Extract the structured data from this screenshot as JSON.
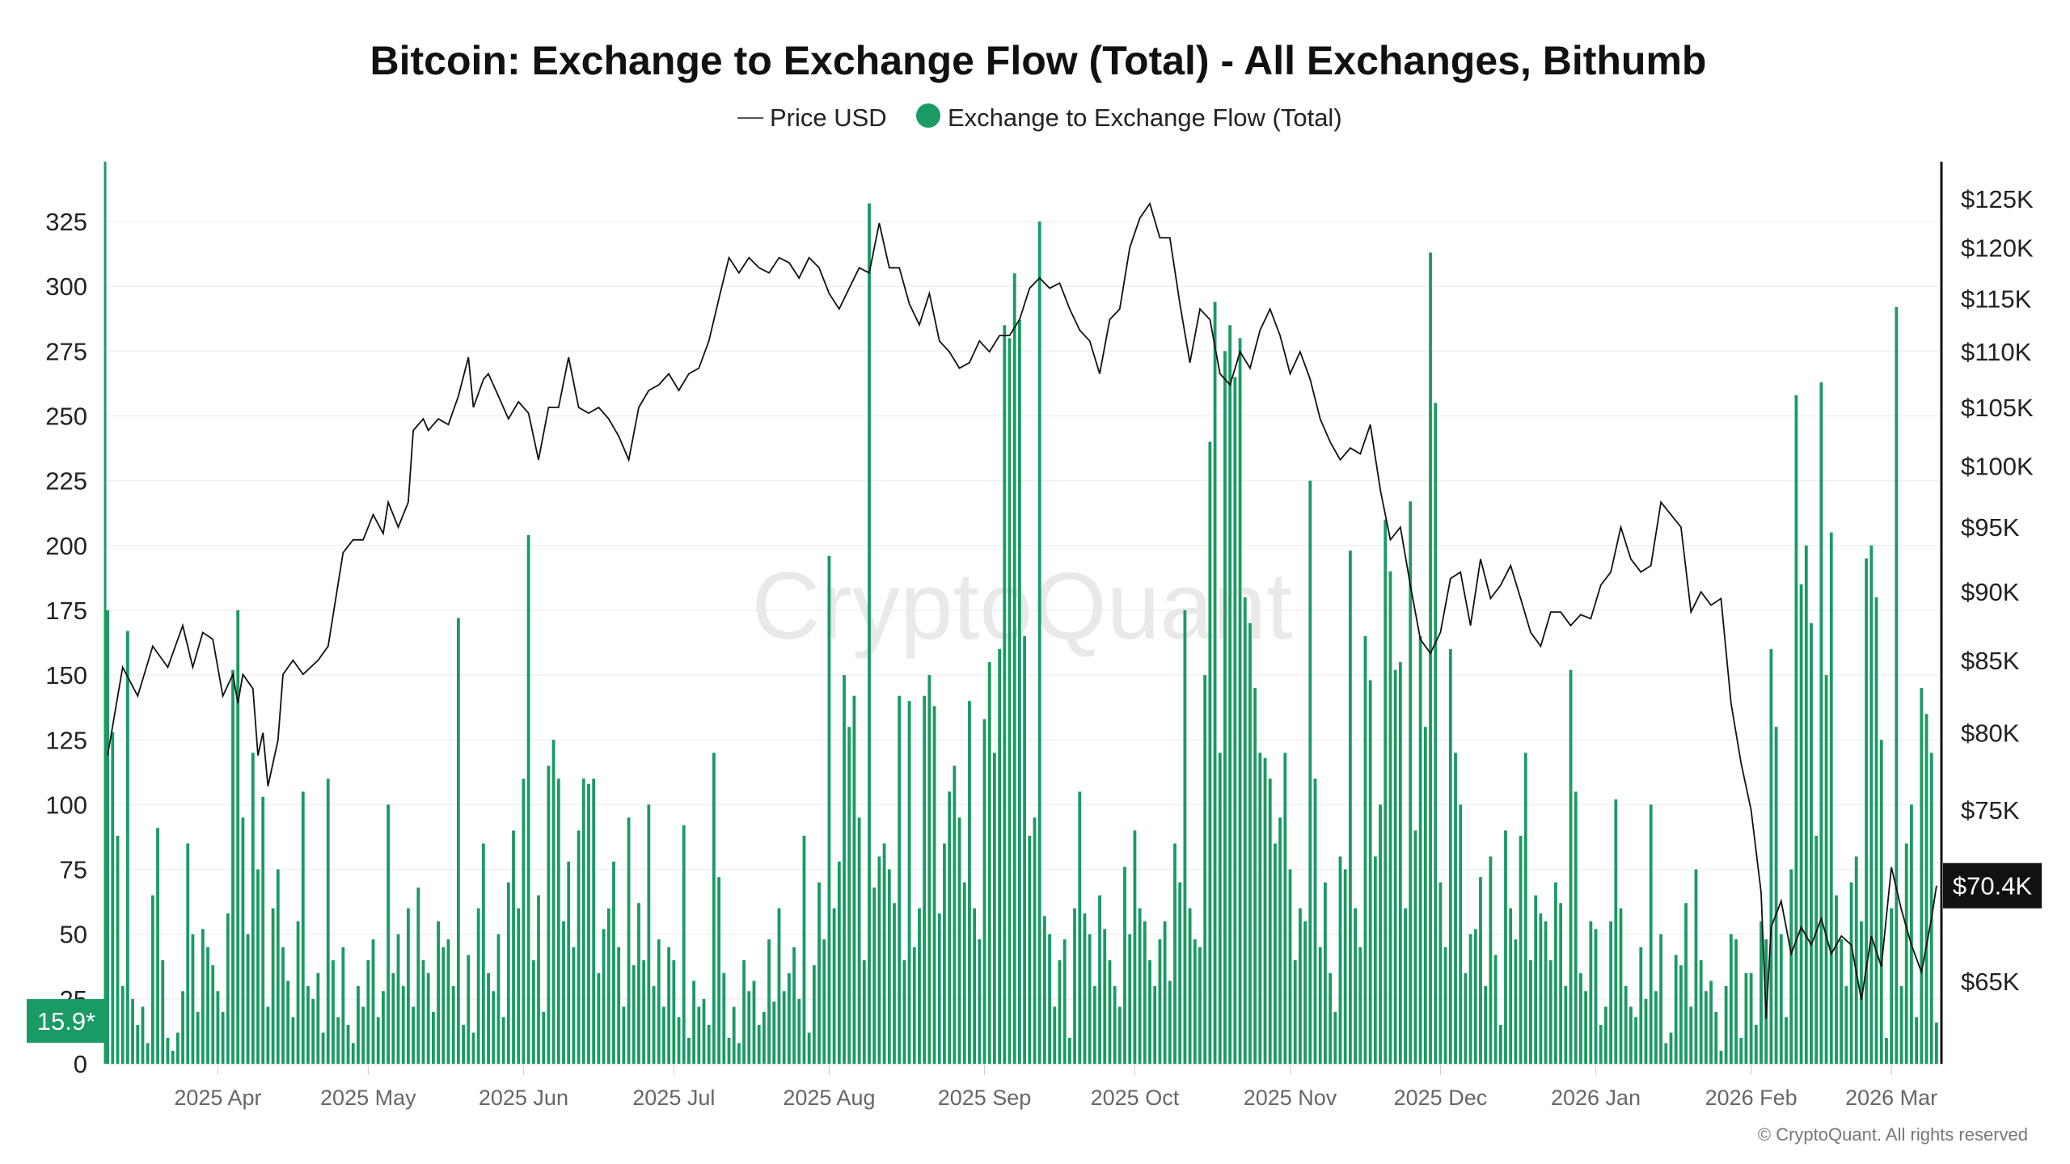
{
  "chart_data": {
    "type": "bar+line",
    "title": "Bitcoin: Exchange to Exchange Flow (Total) - All Exchanges, Bithumb",
    "legend": [
      {
        "label": "Price USD",
        "marker": "line",
        "color": "#111111"
      },
      {
        "label": "Exchange to Exchange Flow (Total)",
        "marker": "dot",
        "color": "#1a9a64"
      }
    ],
    "legend_placement": "top-center",
    "watermark": "CryptoQuant",
    "copyright": "© CryptoQuant. All rights reserved",
    "start_date": "2025-03-10",
    "x_tick_labels": [
      {
        "label": "2025 Apr",
        "day": 22
      },
      {
        "label": "2025 May",
        "day": 52
      },
      {
        "label": "2025 Jun",
        "day": 83
      },
      {
        "label": "2025 Jul",
        "day": 113
      },
      {
        "label": "2025 Aug",
        "day": 144
      },
      {
        "label": "2025 Sep",
        "day": 175
      },
      {
        "label": "2025 Oct",
        "day": 205
      },
      {
        "label": "2025 Nov",
        "day": 236
      },
      {
        "label": "2025 Dec",
        "day": 266
      },
      {
        "label": "2026 Jan",
        "day": 297
      },
      {
        "label": "2026 Feb",
        "day": 328
      },
      {
        "label": "2026 Mar",
        "day": 356
      }
    ],
    "left_axis": {
      "label": "",
      "ylim": [
        0,
        345
      ],
      "ticks": [
        "0",
        "25",
        "50",
        "75",
        "100",
        "125",
        "150",
        "175",
        "200",
        "225",
        "250",
        "275",
        "300",
        "325"
      ]
    },
    "right_axis": {
      "scale": "log",
      "ylim_k": [
        60.5,
        132
      ],
      "ticks": [
        {
          "label": "$65K",
          "value": 65
        },
        {
          "label": "$75K",
          "value": 75
        },
        {
          "label": "$80K",
          "value": 80
        },
        {
          "label": "$85K",
          "value": 85
        },
        {
          "label": "$90K",
          "value": 90
        },
        {
          "label": "$95K",
          "value": 95
        },
        {
          "label": "$100K",
          "value": 100
        },
        {
          "label": "$105K",
          "value": 105
        },
        {
          "label": "$110K",
          "value": 110
        },
        {
          "label": "$115K",
          "value": 115
        },
        {
          "label": "$120K",
          "value": 120
        },
        {
          "label": "$125K",
          "value": 125
        }
      ]
    },
    "last_flow_label": "15.9*",
    "last_price_label": "$70.4K",
    "last_price_k": 70.4,
    "flow_values": [
      175,
      128,
      88,
      30,
      167,
      25,
      15,
      22,
      8,
      65,
      91,
      40,
      10,
      5,
      12,
      28,
      85,
      50,
      20,
      52,
      45,
      38,
      28,
      20,
      58,
      152,
      175,
      95,
      50,
      120,
      75,
      103,
      22,
      60,
      75,
      45,
      32,
      18,
      55,
      105,
      30,
      25,
      35,
      12,
      110,
      40,
      18,
      45,
      15,
      8,
      30,
      22,
      40,
      48,
      18,
      28,
      100,
      35,
      50,
      30,
      60,
      22,
      68,
      40,
      35,
      20,
      55,
      45,
      48,
      30,
      172,
      15,
      42,
      12,
      60,
      85,
      35,
      28,
      50,
      18,
      70,
      90,
      60,
      110,
      204,
      40,
      65,
      20,
      115,
      125,
      110,
      55,
      78,
      45,
      90,
      110,
      108,
      110,
      35,
      52,
      60,
      78,
      45,
      22,
      95,
      38,
      62,
      40,
      100,
      30,
      48,
      22,
      45,
      40,
      18,
      92,
      10,
      32,
      22,
      25,
      15,
      120,
      72,
      35,
      10,
      22,
      8,
      40,
      28,
      32,
      15,
      20,
      48,
      24,
      60,
      28,
      35,
      45,
      25,
      88,
      12,
      38,
      70,
      48,
      196,
      60,
      78,
      150,
      130,
      142,
      95,
      40,
      332,
      68,
      80,
      85,
      75,
      62,
      142,
      40,
      140,
      45,
      60,
      142,
      150,
      138,
      58,
      85,
      105,
      115,
      95,
      70,
      140,
      60,
      48,
      133,
      155,
      120,
      160,
      285,
      280,
      305,
      287,
      165,
      88,
      95,
      325,
      57,
      50,
      22,
      40,
      48,
      10,
      60,
      105,
      58,
      50,
      30,
      65,
      52,
      40,
      30,
      22,
      76,
      50,
      90,
      60,
      55,
      40,
      30,
      48,
      55,
      32,
      85,
      70,
      175,
      60,
      48,
      45,
      150,
      240,
      294,
      120,
      275,
      285,
      265,
      280,
      180,
      170,
      145,
      120,
      118,
      110,
      85,
      95,
      120,
      75,
      40,
      60,
      55,
      225,
      110,
      45,
      70,
      35,
      20,
      80,
      75,
      198,
      60,
      45,
      165,
      148,
      80,
      100,
      210,
      190,
      152,
      155,
      60,
      217,
      90,
      165,
      130,
      313,
      255,
      70,
      45,
      160,
      120,
      100,
      35,
      50,
      52,
      72,
      30,
      80,
      42,
      15,
      90,
      60,
      48,
      88,
      120,
      40,
      65,
      58,
      55,
      40,
      70,
      62,
      30,
      152,
      105,
      35,
      28,
      55,
      52,
      15,
      22,
      55,
      102,
      60,
      30,
      22,
      18,
      45,
      25,
      100,
      28,
      50,
      8,
      12,
      42,
      38,
      62,
      22,
      75,
      40,
      28,
      32,
      20,
      5,
      30,
      50,
      48,
      10,
      35,
      35,
      15,
      55,
      48,
      160,
      130,
      50,
      18,
      75,
      258,
      185,
      200,
      170,
      88,
      263,
      150,
      205,
      65,
      48,
      30,
      70,
      80,
      55,
      195,
      200,
      180,
      125,
      10,
      60,
      292,
      30,
      85,
      100,
      18,
      145,
      135,
      120,
      15.9
    ],
    "price_points_k": [
      [
        0,
        78.5
      ],
      [
        3,
        84.5
      ],
      [
        6,
        82.5
      ],
      [
        9,
        86
      ],
      [
        12,
        84.5
      ],
      [
        15,
        87.5
      ],
      [
        17,
        84.5
      ],
      [
        19,
        87
      ],
      [
        21,
        86.5
      ],
      [
        23,
        82.5
      ],
      [
        25,
        84
      ],
      [
        26,
        82
      ],
      [
        27,
        84
      ],
      [
        29,
        83
      ],
      [
        30,
        78.5
      ],
      [
        31,
        80
      ],
      [
        32,
        76.5
      ],
      [
        33,
        78
      ],
      [
        34,
        79.5
      ],
      [
        35,
        84
      ],
      [
        37,
        85
      ],
      [
        39,
        84
      ],
      [
        42,
        85
      ],
      [
        44,
        86
      ],
      [
        47,
        93
      ],
      [
        49,
        94
      ],
      [
        51,
        94
      ],
      [
        53,
        96
      ],
      [
        55,
        94.5
      ],
      [
        56,
        97
      ],
      [
        58,
        95
      ],
      [
        60,
        97
      ],
      [
        61,
        103
      ],
      [
        63,
        104
      ],
      [
        64,
        103
      ],
      [
        66,
        104
      ],
      [
        68,
        103.5
      ],
      [
        70,
        106
      ],
      [
        72,
        109.5
      ],
      [
        73,
        105
      ],
      [
        75,
        107.5
      ],
      [
        76,
        108
      ],
      [
        78,
        106
      ],
      [
        80,
        104
      ],
      [
        82,
        105.5
      ],
      [
        84,
        104.5
      ],
      [
        86,
        100.5
      ],
      [
        88,
        105
      ],
      [
        90,
        105
      ],
      [
        92,
        109.5
      ],
      [
        94,
        105
      ],
      [
        96,
        104.5
      ],
      [
        98,
        105
      ],
      [
        100,
        104
      ],
      [
        102,
        102.5
      ],
      [
        104,
        100.5
      ],
      [
        106,
        105
      ],
      [
        108,
        106.5
      ],
      [
        110,
        107
      ],
      [
        112,
        108
      ],
      [
        114,
        106.5
      ],
      [
        116,
        108
      ],
      [
        118,
        108.5
      ],
      [
        120,
        111
      ],
      [
        122,
        115
      ],
      [
        124,
        119
      ],
      [
        126,
        117.5
      ],
      [
        128,
        119
      ],
      [
        130,
        118
      ],
      [
        132,
        117.5
      ],
      [
        134,
        119
      ],
      [
        136,
        118.5
      ],
      [
        138,
        117
      ],
      [
        140,
        119
      ],
      [
        142,
        118
      ],
      [
        144,
        115.5
      ],
      [
        146,
        114
      ],
      [
        148,
        116
      ],
      [
        150,
        118
      ],
      [
        152,
        117.5
      ],
      [
        154,
        122.5
      ],
      [
        156,
        118
      ],
      [
        158,
        118
      ],
      [
        160,
        114.5
      ],
      [
        162,
        112.5
      ],
      [
        164,
        115.5
      ],
      [
        166,
        111
      ],
      [
        168,
        110
      ],
      [
        170,
        108.5
      ],
      [
        172,
        109
      ],
      [
        174,
        111
      ],
      [
        176,
        110
      ],
      [
        178,
        111.5
      ],
      [
        180,
        111.5
      ],
      [
        182,
        113
      ],
      [
        184,
        116
      ],
      [
        186,
        117
      ],
      [
        188,
        116
      ],
      [
        190,
        116.5
      ],
      [
        192,
        114
      ],
      [
        194,
        112
      ],
      [
        196,
        111
      ],
      [
        198,
        108
      ],
      [
        200,
        113
      ],
      [
        202,
        114
      ],
      [
        204,
        120
      ],
      [
        206,
        123
      ],
      [
        208,
        124.5
      ],
      [
        210,
        121
      ],
      [
        212,
        121
      ],
      [
        214,
        114.5
      ],
      [
        216,
        109
      ],
      [
        218,
        114
      ],
      [
        220,
        113
      ],
      [
        222,
        108
      ],
      [
        224,
        107
      ],
      [
        226,
        110
      ],
      [
        228,
        108.5
      ],
      [
        230,
        112
      ],
      [
        232,
        114
      ],
      [
        234,
        111.5
      ],
      [
        236,
        108
      ],
      [
        238,
        110
      ],
      [
        240,
        107.5
      ],
      [
        242,
        104
      ],
      [
        244,
        102
      ],
      [
        246,
        100.5
      ],
      [
        248,
        101.5
      ],
      [
        250,
        101
      ],
      [
        252,
        103.5
      ],
      [
        254,
        98
      ],
      [
        256,
        94
      ],
      [
        258,
        95
      ],
      [
        260,
        90.5
      ],
      [
        262,
        86.5
      ],
      [
        264,
        85.5
      ],
      [
        266,
        87
      ],
      [
        268,
        91
      ],
      [
        270,
        91.5
      ],
      [
        272,
        87.5
      ],
      [
        274,
        92.5
      ],
      [
        276,
        89.5
      ],
      [
        278,
        90.5
      ],
      [
        280,
        92
      ],
      [
        282,
        89.5
      ],
      [
        284,
        87
      ],
      [
        286,
        86
      ],
      [
        288,
        88.5
      ],
      [
        290,
        88.5
      ],
      [
        292,
        87.5
      ],
      [
        294,
        88.3
      ],
      [
        296,
        88
      ],
      [
        298,
        90.5
      ],
      [
        300,
        91.5
      ],
      [
        302,
        95
      ],
      [
        304,
        92.5
      ],
      [
        306,
        91.5
      ],
      [
        308,
        92
      ],
      [
        310,
        97
      ],
      [
        312,
        96
      ],
      [
        314,
        95
      ],
      [
        316,
        88.5
      ],
      [
        318,
        90
      ],
      [
        320,
        89
      ],
      [
        322,
        89.5
      ],
      [
        324,
        82
      ],
      [
        326,
        78
      ],
      [
        328,
        75
      ],
      [
        330,
        70
      ],
      [
        331,
        63
      ],
      [
        332,
        68
      ],
      [
        334,
        69.5
      ],
      [
        336,
        66.5
      ],
      [
        338,
        68
      ],
      [
        340,
        67
      ],
      [
        342,
        68.5
      ],
      [
        344,
        66.5
      ],
      [
        346,
        67.5
      ],
      [
        348,
        67
      ],
      [
        350,
        64
      ],
      [
        352,
        67.5
      ],
      [
        354,
        65.8
      ],
      [
        356,
        71.5
      ],
      [
        358,
        69
      ],
      [
        360,
        67
      ],
      [
        362,
        65.5
      ],
      [
        364,
        68.5
      ],
      [
        365,
        70.4
      ]
    ],
    "colors": {
      "flow": "#1a9a64",
      "price": "#111111",
      "price_badge": "#111111",
      "flow_badge": "#1a9a64"
    }
  }
}
